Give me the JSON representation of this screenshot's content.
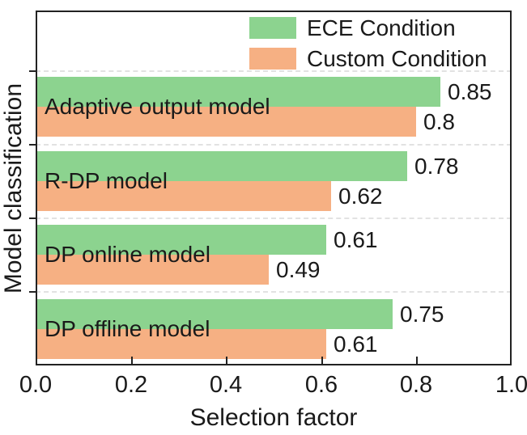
{
  "figure": {
    "background": "#ffffff",
    "frame_color": "#222222",
    "text_color": "#1a1a1a",
    "grid_color": "#e2e2e2"
  },
  "chart_data": {
    "type": "bar",
    "orientation": "horizontal",
    "title": "",
    "xlabel": "Selection factor",
    "ylabel": "Model classification",
    "xlim": [
      0.0,
      1.0
    ],
    "xticks": [
      0.0,
      0.2,
      0.4,
      0.6,
      0.8,
      1.0
    ],
    "xtick_labels": [
      "0.0",
      "0.2",
      "0.4",
      "0.6",
      "0.8",
      "1.0"
    ],
    "categories": [
      "Adaptive output model",
      "R-DP model",
      "DP online model",
      "DP offline model"
    ],
    "series": [
      {
        "name": "ECE Condition",
        "color": "#8CD38F",
        "values": [
          0.85,
          0.78,
          0.61,
          0.75
        ],
        "labels": [
          "0.85",
          "0.78",
          "0.61",
          "0.75"
        ]
      },
      {
        "name": "Custom Condition",
        "color": "#F6B083",
        "values": [
          0.8,
          0.62,
          0.49,
          0.61
        ],
        "labels": [
          "0.8",
          "0.62",
          "0.49",
          "0.61"
        ]
      }
    ],
    "legend": {
      "position": "top-right-inside",
      "entries": [
        "ECE Condition",
        "Custom Condition"
      ]
    },
    "grid": {
      "style": "dashed",
      "lines": "category-separators"
    }
  }
}
